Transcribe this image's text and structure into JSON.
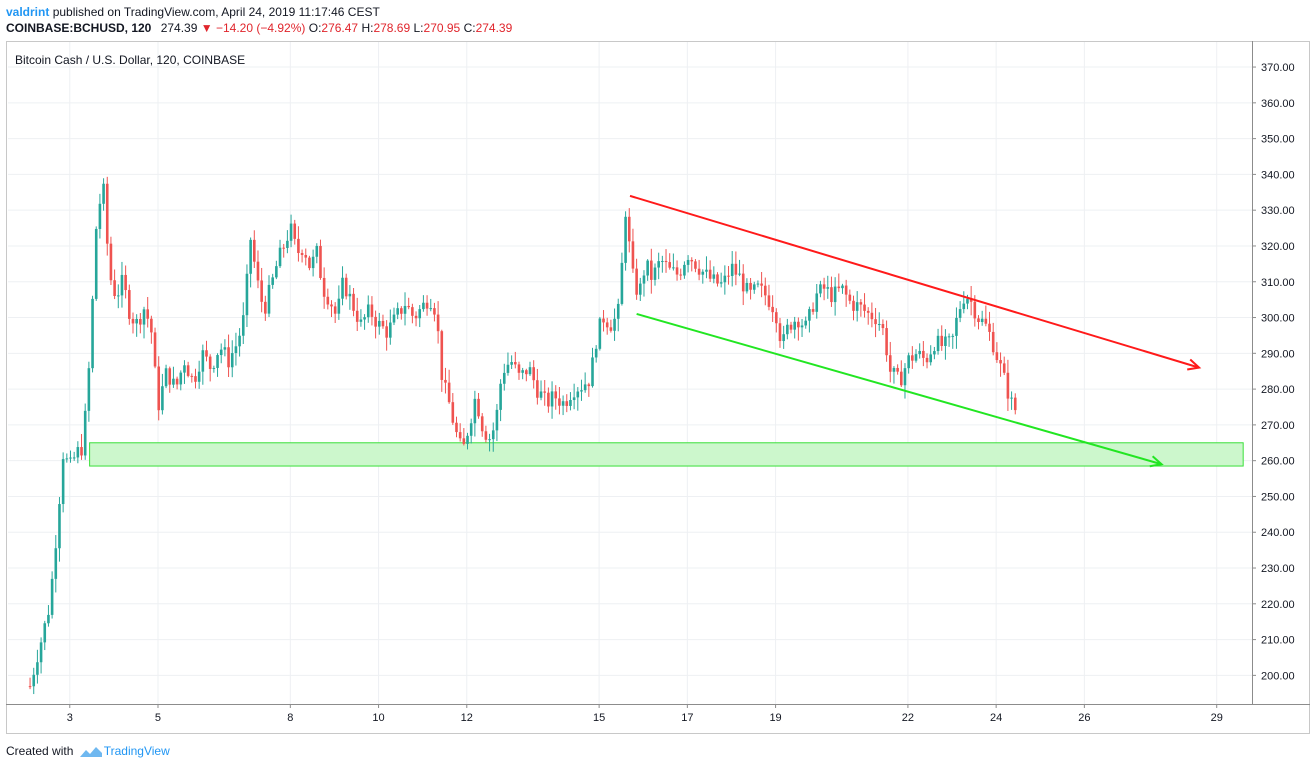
{
  "header": {
    "author": "valdrint",
    "published_text": "published on TradingView.com, April 24, 2019 11:17:46 CEST",
    "symbol": "COINBASE:BCHUSD, 120",
    "last": "274.39",
    "arrow": "▼",
    "change": "−14.20 (−4.92%)",
    "o_label": "O:",
    "o_value": "276.47",
    "h_label": "H:",
    "h_value": "278.69",
    "l_label": "L:",
    "l_value": "270.95",
    "c_label": "C:",
    "c_value": "274.39"
  },
  "footer": {
    "created_with": "Created with",
    "brand": "TradingView"
  },
  "colors": {
    "up": "#26a69a",
    "down": "#ef5350",
    "resistance": "#ff1a1a",
    "support": "#22e622",
    "zone_fill": "#ccf7cc",
    "zone_stroke": "#39e039",
    "grid": "#eef0f3",
    "axis_text": "#131722"
  },
  "chart_data": {
    "type": "candlestick",
    "title": "Bitcoin Cash / U.S. Dollar, 120, COINBASE",
    "y_ticks": [
      "200.00",
      "210.00",
      "220.00",
      "230.00",
      "240.00",
      "250.00",
      "260.00",
      "270.00",
      "280.00",
      "290.00",
      "300.00",
      "310.00",
      "320.00",
      "330.00",
      "340.00",
      "350.00",
      "360.00",
      "370.00"
    ],
    "x_ticks": [
      {
        "day": 3,
        "label": "3"
      },
      {
        "day": 5,
        "label": "5"
      },
      {
        "day": 8,
        "label": "8"
      },
      {
        "day": 10,
        "label": "10"
      },
      {
        "day": 12,
        "label": "12"
      },
      {
        "day": 15,
        "label": "15"
      },
      {
        "day": 17,
        "label": "17"
      },
      {
        "day": 19,
        "label": "19"
      },
      {
        "day": 22,
        "label": "22"
      },
      {
        "day": 24,
        "label": "24"
      },
      {
        "day": 26,
        "label": "26"
      },
      {
        "day": 29,
        "label": "29"
      }
    ],
    "ylim": [
      192,
      377
    ],
    "xlim": [
      1.6,
      29.8
    ],
    "close_path": [
      [
        2.1,
        197
      ],
      [
        2.25,
        205
      ],
      [
        2.4,
        212
      ],
      [
        2.55,
        220
      ],
      [
        2.7,
        240
      ],
      [
        2.85,
        262
      ],
      [
        3.0,
        258
      ],
      [
        3.15,
        262
      ],
      [
        3.3,
        264
      ],
      [
        3.45,
        288
      ],
      [
        3.6,
        325
      ],
      [
        3.75,
        338
      ],
      [
        3.9,
        312
      ],
      [
        4.05,
        306
      ],
      [
        4.2,
        310
      ],
      [
        4.35,
        302
      ],
      [
        4.5,
        298
      ],
      [
        4.7,
        303
      ],
      [
        4.85,
        296
      ],
      [
        5.0,
        275
      ],
      [
        5.2,
        285
      ],
      [
        5.4,
        280
      ],
      [
        5.6,
        288
      ],
      [
        5.8,
        282
      ],
      [
        6.0,
        290
      ],
      [
        6.2,
        286
      ],
      [
        6.4,
        292
      ],
      [
        6.6,
        288
      ],
      [
        6.8,
        293
      ],
      [
        6.95,
        300
      ],
      [
        7.1,
        322
      ],
      [
        7.25,
        310
      ],
      [
        7.4,
        302
      ],
      [
        7.55,
        308
      ],
      [
        7.7,
        315
      ],
      [
        7.85,
        320
      ],
      [
        8.0,
        325
      ],
      [
        8.15,
        318
      ],
      [
        8.3,
        320
      ],
      [
        8.45,
        314
      ],
      [
        8.6,
        318
      ],
      [
        8.75,
        308
      ],
      [
        8.9,
        305
      ],
      [
        9.05,
        300
      ],
      [
        9.2,
        310
      ],
      [
        9.4,
        304
      ],
      [
        9.6,
        298
      ],
      [
        9.8,
        302
      ],
      [
        10.0,
        298
      ],
      [
        10.2,
        296
      ],
      [
        10.4,
        300
      ],
      [
        10.6,
        304
      ],
      [
        10.8,
        300
      ],
      [
        11.0,
        303
      ],
      [
        11.15,
        306
      ],
      [
        11.3,
        302
      ],
      [
        11.45,
        282
      ],
      [
        11.6,
        276
      ],
      [
        11.75,
        268
      ],
      [
        11.9,
        262
      ],
      [
        12.05,
        270
      ],
      [
        12.2,
        278
      ],
      [
        12.35,
        270
      ],
      [
        12.5,
        266
      ],
      [
        12.65,
        270
      ],
      [
        12.8,
        285
      ],
      [
        13.0,
        288
      ],
      [
        13.2,
        283
      ],
      [
        13.4,
        286
      ],
      [
        13.6,
        280
      ],
      [
        13.8,
        276
      ],
      [
        14.0,
        278
      ],
      [
        14.2,
        276
      ],
      [
        14.4,
        280
      ],
      [
        14.6,
        281
      ],
      [
        14.8,
        283
      ],
      [
        14.95,
        295
      ],
      [
        15.1,
        300
      ],
      [
        15.3,
        298
      ],
      [
        15.45,
        302
      ],
      [
        15.6,
        330
      ],
      [
        15.75,
        312
      ],
      [
        15.9,
        306
      ],
      [
        16.05,
        315
      ],
      [
        16.2,
        311
      ],
      [
        16.4,
        316
      ],
      [
        16.6,
        313
      ],
      [
        16.8,
        312
      ],
      [
        17.0,
        318
      ],
      [
        17.2,
        315
      ],
      [
        17.4,
        312
      ],
      [
        17.6,
        310
      ],
      [
        17.8,
        309
      ],
      [
        18.0,
        314
      ],
      [
        18.2,
        311
      ],
      [
        18.4,
        306
      ],
      [
        18.6,
        308
      ],
      [
        18.8,
        306
      ],
      [
        19.0,
        302
      ],
      [
        19.15,
        292
      ],
      [
        19.3,
        298
      ],
      [
        19.5,
        300
      ],
      [
        19.7,
        297
      ],
      [
        19.9,
        306
      ],
      [
        20.1,
        308
      ],
      [
        20.3,
        306
      ],
      [
        20.5,
        308
      ],
      [
        20.7,
        304
      ],
      [
        20.9,
        303
      ],
      [
        21.1,
        301
      ],
      [
        21.3,
        300
      ],
      [
        21.45,
        296
      ],
      [
        21.6,
        285
      ],
      [
        21.8,
        282
      ],
      [
        22.0,
        288
      ],
      [
        22.2,
        290
      ],
      [
        22.4,
        288
      ],
      [
        22.6,
        293
      ],
      [
        22.8,
        292
      ],
      [
        23.0,
        293
      ],
      [
        23.15,
        302
      ],
      [
        23.3,
        307
      ],
      [
        23.45,
        304
      ],
      [
        23.6,
        300
      ],
      [
        23.75,
        298
      ],
      [
        23.9,
        294
      ],
      [
        24.05,
        288
      ],
      [
        24.2,
        282
      ],
      [
        24.35,
        276
      ],
      [
        24.45,
        274
      ]
    ],
    "support_zone": {
      "from_day": 3.45,
      "to_day": 29.6,
      "y_low": 258.5,
      "y_high": 265
    },
    "resistance_line": {
      "from": [
        15.7,
        334
      ],
      "to": [
        28.6,
        286
      ]
    },
    "support_line": {
      "from": [
        15.85,
        301
      ],
      "to": [
        27.75,
        259
      ]
    }
  }
}
